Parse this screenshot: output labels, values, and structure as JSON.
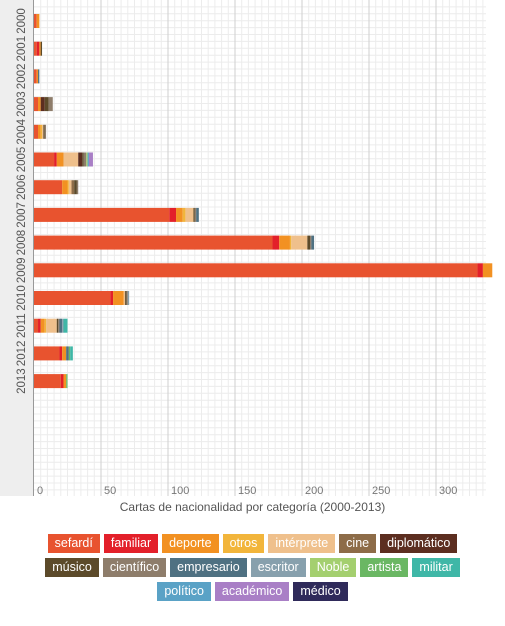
{
  "chart_data": {
    "type": "bar",
    "orientation": "horizontal",
    "stacked": true,
    "title": "",
    "xlabel": "Cartas de nacionalidad por categoría (2000-2013)",
    "ylabel": "",
    "xlim": [
      0,
      345
    ],
    "xticks": [
      0,
      50,
      100,
      150,
      200,
      250,
      300
    ],
    "grid": true,
    "legend_position": "bottom",
    "categories": [
      "2000",
      "2001",
      "2002",
      "2003",
      "2004",
      "2005",
      "2006",
      "2007",
      "2008",
      "2009",
      "2010",
      "2011",
      "2012",
      "2013"
    ],
    "series": [
      {
        "name": "sefardí",
        "color": "#e8532f",
        "values": [
          2,
          2,
          2,
          3,
          3,
          15,
          21,
          101,
          178,
          331,
          57,
          3,
          19,
          20
        ]
      },
      {
        "name": "familiar",
        "color": "#e3202a",
        "values": [
          0,
          2,
          0,
          0,
          0,
          2,
          0,
          5,
          5,
          4,
          2,
          2,
          2,
          2
        ]
      },
      {
        "name": "deporte",
        "color": "#f29122",
        "values": [
          2,
          1,
          1,
          2,
          2,
          5,
          4,
          5,
          8,
          7,
          8,
          3,
          3,
          2
        ]
      },
      {
        "name": "otros",
        "color": "#f2b53b",
        "values": [
          0,
          0,
          0,
          0,
          1,
          0,
          1,
          2,
          1,
          0,
          0,
          1,
          0,
          0
        ]
      },
      {
        "name": "intérprete",
        "color": "#efc08c",
        "values": [
          0,
          0,
          0,
          0,
          1,
          11,
          2,
          6,
          12,
          0,
          1,
          8,
          0,
          0
        ]
      },
      {
        "name": "cine",
        "color": "#8d6c48",
        "values": [
          0,
          0,
          0,
          0,
          0,
          0,
          2,
          0,
          0,
          0,
          0,
          0,
          0,
          0
        ]
      },
      {
        "name": "diplomático",
        "color": "#5c2e20",
        "values": [
          0,
          0,
          0,
          3,
          0,
          3,
          0,
          0,
          0,
          0,
          0,
          0,
          0,
          0
        ]
      },
      {
        "name": "músico",
        "color": "#5c4a2a",
        "values": [
          0,
          1,
          0,
          3,
          1,
          1,
          2,
          1,
          2,
          0,
          1,
          1,
          0,
          0
        ]
      },
      {
        "name": "científico",
        "color": "#8e7d6b",
        "values": [
          0,
          0,
          0,
          3,
          1,
          2,
          1,
          1,
          1,
          0,
          1,
          1,
          0,
          0
        ]
      },
      {
        "name": "empresario",
        "color": "#4f7182",
        "values": [
          0,
          0,
          1,
          0,
          0,
          0,
          0,
          2,
          2,
          0,
          0,
          2,
          2,
          0
        ]
      },
      {
        "name": "escritor",
        "color": "#87a0ad",
        "values": [
          0,
          0,
          0,
          0,
          0,
          0,
          0,
          0,
          0,
          0,
          1,
          1,
          0,
          0
        ]
      },
      {
        "name": "Noble",
        "color": "#a4cf6f",
        "values": [
          0,
          0,
          0,
          0,
          0,
          1,
          0,
          0,
          0,
          0,
          0,
          0,
          0,
          0
        ]
      },
      {
        "name": "artista",
        "color": "#6ab763",
        "values": [
          0,
          0,
          0,
          0,
          0,
          0,
          0,
          0,
          0,
          0,
          0,
          0,
          1,
          1
        ]
      },
      {
        "name": "militar",
        "color": "#3fb7a7",
        "values": [
          0,
          0,
          0,
          0,
          0,
          0,
          0,
          0,
          0,
          0,
          0,
          3,
          2,
          0
        ]
      },
      {
        "name": "político",
        "color": "#5aa2c6",
        "values": [
          0,
          0,
          0,
          0,
          0,
          1,
          0,
          0,
          0,
          0,
          0,
          0,
          0,
          0
        ]
      },
      {
        "name": "académico",
        "color": "#a97fc6",
        "values": [
          0,
          0,
          0,
          0,
          0,
          3,
          0,
          0,
          0,
          0,
          0,
          0,
          0,
          0
        ]
      },
      {
        "name": "médico",
        "color": "#2f2a5a",
        "values": [
          0,
          0,
          0,
          0,
          0,
          0,
          0,
          0,
          0,
          0,
          0,
          0,
          0,
          0
        ]
      }
    ]
  }
}
